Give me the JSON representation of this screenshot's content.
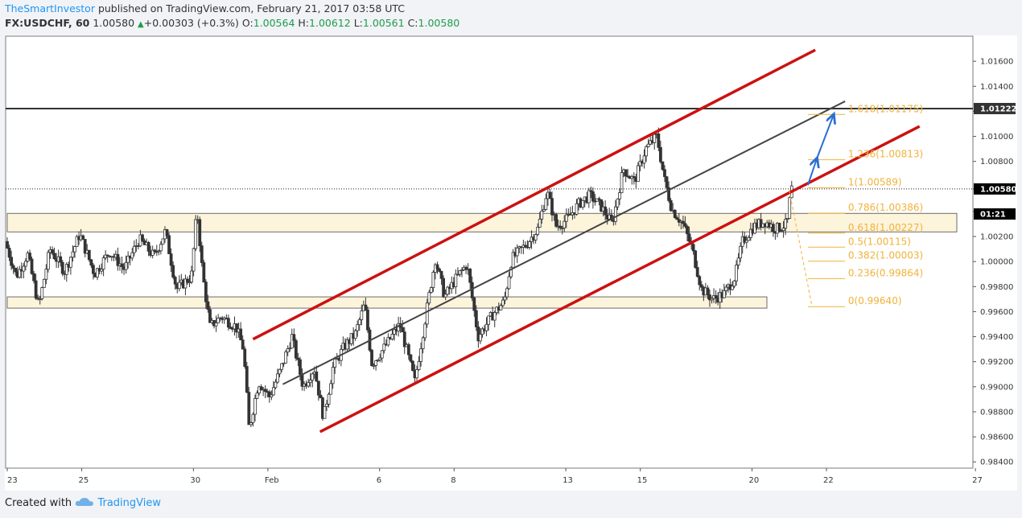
{
  "header": {
    "author": "TheSmartInvestor",
    "published": "published on TradingView.com, February 21, 2017 03:58 UTC",
    "symbol": "FX:USDCHF, 60",
    "last": "1.00580",
    "change": "+0.00303 (+0.3%)",
    "o_label": "O:",
    "o": "1.00564",
    "h_label": "H:",
    "h": "1.00612",
    "l_label": "L:",
    "l": "1.00561",
    "c_label": "C:",
    "c": "1.00580"
  },
  "footer": {
    "created_with": "Created with",
    "brand": "TradingView"
  },
  "colors": {
    "candle_up": "#ffffff",
    "candle_down": "#333333",
    "channel": "#cc1111",
    "midline": "#444444",
    "fib": "#f0b23a",
    "zone_fill": "#fdf4dc",
    "arrow": "#2b6ed4",
    "background": "#f1f3f6"
  },
  "chart_data": {
    "type": "candlestick",
    "symbol": "FX:USDCHF",
    "interval": "60",
    "ylim": [
      0.9835,
      1.018
    ],
    "y_ticks": [
      "1.01600",
      "1.01400",
      "1.01200",
      "1.01000",
      "1.00800",
      "1.00580",
      "1.00400",
      "1.00200",
      "1.00000",
      "0.99800",
      "0.99600",
      "0.99400",
      "0.99200",
      "0.99000",
      "0.98800",
      "0.98600",
      "0.98400"
    ],
    "y_tick_values": [
      1.016,
      1.014,
      1.012,
      1.01,
      1.008,
      1.0058,
      1.004,
      1.002,
      1.0,
      0.998,
      0.996,
      0.994,
      0.992,
      0.99,
      0.988,
      0.986,
      0.984
    ],
    "x_ticks": [
      "23",
      "25",
      "30",
      "Feb",
      "6",
      "8",
      "13",
      "15",
      "20",
      "22",
      "27"
    ],
    "x_tick_positions": [
      0,
      2,
      5,
      7,
      10,
      12,
      15,
      17,
      20,
      22,
      26
    ],
    "x_range": [
      0,
      25.5
    ],
    "price_labels": [
      {
        "text": "1.01222",
        "value": 1.01222,
        "style": "dark"
      },
      {
        "text": "1.00580",
        "value": 1.0058,
        "style": "black"
      },
      {
        "text": "01:21",
        "value": 1.0038,
        "style": "black"
      }
    ],
    "horizontal_lines": [
      {
        "value": 1.01222,
        "style": "solid"
      },
      {
        "value": 1.0058,
        "style": "dotted"
      }
    ],
    "zones": [
      {
        "from_x": 0,
        "to_x": 25.5,
        "low": 1.00237,
        "high": 1.00385
      },
      {
        "from_x": 0,
        "to_x": 20.4,
        "low": 0.99628,
        "high": 0.99718
      }
    ],
    "channel_lines": [
      {
        "name": "channel-upper",
        "x1": 6.6,
        "y1": 0.9938,
        "x2": 21.7,
        "y2": 1.0169,
        "color": "channel"
      },
      {
        "name": "channel-lower",
        "x1": 8.4,
        "y1": 0.9864,
        "x2": 24.5,
        "y2": 1.0108,
        "color": "channel"
      },
      {
        "name": "channel-mid",
        "x1": 7.4,
        "y1": 0.9902,
        "x2": 22.5,
        "y2": 1.0128,
        "color": "midline"
      }
    ],
    "fibonacci": {
      "levels": [
        {
          "label": "1.618(1.01175)",
          "value": 1.01175
        },
        {
          "label": "1.236(1.00813)",
          "value": 1.00813
        },
        {
          "label": "1(1.00589)",
          "value": 1.00589
        },
        {
          "label": "0.786(1.00386)",
          "value": 1.00386
        },
        {
          "label": "0.618(1.00227)",
          "value": 1.00227
        },
        {
          "label": "0.5(1.00115)",
          "value": 1.00115
        },
        {
          "label": "0.382(1.00003)",
          "value": 1.00003
        },
        {
          "label": "0.236(0.99864)",
          "value": 0.99864
        },
        {
          "label": "0(0.99640)",
          "value": 0.9964
        }
      ],
      "x_from": 21.5,
      "x_to": 22.5
    },
    "trend_path": [
      [
        21.0,
        1.0057
      ],
      [
        21.6,
        0.9966
      ]
    ],
    "arrows": [
      {
        "from": [
          21.5,
          1.0061
        ],
        "to": [
          21.75,
          1.0083
        ]
      },
      {
        "from": [
          21.75,
          1.0083
        ],
        "to": [
          22.2,
          1.0118
        ]
      }
    ],
    "price_path": [
      [
        0.0,
        1.0016
      ],
      [
        0.3,
        0.9988
      ],
      [
        0.6,
        1.0006
      ],
      [
        0.9,
        0.9964
      ],
      [
        1.2,
        1.001
      ],
      [
        1.6,
        0.9992
      ],
      [
        2.0,
        1.0022
      ],
      [
        2.4,
        0.999
      ],
      [
        2.8,
        1.0008
      ],
      [
        3.2,
        0.9994
      ],
      [
        3.6,
        1.0018
      ],
      [
        4.0,
        1.0004
      ],
      [
        4.3,
        1.0024
      ],
      [
        4.6,
        0.9978
      ],
      [
        5.0,
        0.9988
      ],
      [
        5.15,
        1.0042
      ],
      [
        5.3,
        0.999
      ],
      [
        5.5,
        0.9948
      ],
      [
        5.8,
        0.9956
      ],
      [
        6.2,
        0.9948
      ],
      [
        6.4,
        0.993
      ],
      [
        6.55,
        0.9866
      ],
      [
        6.8,
        0.9904
      ],
      [
        7.1,
        0.9892
      ],
      [
        7.4,
        0.9914
      ],
      [
        7.7,
        0.994
      ],
      [
        8.0,
        0.99
      ],
      [
        8.3,
        0.9915
      ],
      [
        8.55,
        0.9875
      ],
      [
        8.8,
        0.9915
      ],
      [
        9.1,
        0.9932
      ],
      [
        9.4,
        0.9942
      ],
      [
        9.65,
        0.9966
      ],
      [
        9.85,
        0.9918
      ],
      [
        10.2,
        0.9932
      ],
      [
        10.6,
        0.995
      ],
      [
        11.0,
        0.9904
      ],
      [
        11.3,
        0.9958
      ],
      [
        11.55,
        1.0002
      ],
      [
        11.8,
        0.9972
      ],
      [
        12.1,
        0.9986
      ],
      [
        12.4,
        0.9998
      ],
      [
        12.7,
        0.994
      ],
      [
        13.1,
        0.9958
      ],
      [
        13.4,
        0.9968
      ],
      [
        13.6,
        1.0002
      ],
      [
        14.0,
        1.0014
      ],
      [
        14.3,
        1.0026
      ],
      [
        14.55,
        1.0056
      ],
      [
        14.8,
        1.0028
      ],
      [
        15.1,
        1.0034
      ],
      [
        15.4,
        1.0046
      ],
      [
        15.7,
        1.0053
      ],
      [
        16.0,
        1.0044
      ],
      [
        16.3,
        1.003
      ],
      [
        16.6,
        1.0074
      ],
      [
        16.9,
        1.0064
      ],
      [
        17.2,
        1.009
      ],
      [
        17.5,
        1.01
      ],
      [
        17.7,
        1.0066
      ],
      [
        17.9,
        1.0042
      ],
      [
        18.2,
        1.003
      ],
      [
        18.45,
        1.001
      ],
      [
        18.7,
        0.9978
      ],
      [
        19.0,
        0.997
      ],
      [
        19.3,
        0.9974
      ],
      [
        19.6,
        0.9988
      ],
      [
        19.8,
        1.0016
      ],
      [
        20.1,
        1.0028
      ],
      [
        20.4,
        1.0032
      ],
      [
        20.7,
        1.0026
      ],
      [
        21.0,
        1.003
      ],
      [
        21.1,
        1.0058
      ]
    ]
  }
}
